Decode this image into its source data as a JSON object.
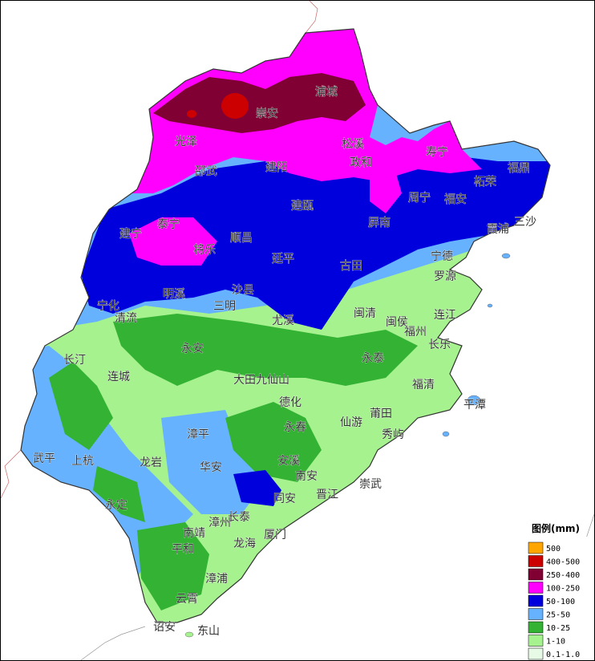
{
  "map": {
    "cities": [
      {
        "name": "浦城",
        "id": "pucheng"
      },
      {
        "name": "崇安",
        "id": "chongan"
      },
      {
        "name": "光泽",
        "id": "guangze"
      },
      {
        "name": "松溪",
        "id": "songxi"
      },
      {
        "name": "寿宁",
        "id": "shouning"
      },
      {
        "name": "福鼎",
        "id": "fuding"
      },
      {
        "name": "邵武",
        "id": "shaowu"
      },
      {
        "name": "建阳",
        "id": "jianyang"
      },
      {
        "name": "政和",
        "id": "zhenghe"
      },
      {
        "name": "柘荣",
        "id": "zherong"
      },
      {
        "name": "周宁",
        "id": "zhouning"
      },
      {
        "name": "福安",
        "id": "fuan"
      },
      {
        "name": "霞浦",
        "id": "xiapu"
      },
      {
        "name": "三沙",
        "id": "sansha"
      },
      {
        "name": "建瓯",
        "id": "jianou"
      },
      {
        "name": "泰宁",
        "id": "taining"
      },
      {
        "name": "屏南",
        "id": "pingnan"
      },
      {
        "name": "建宁",
        "id": "jianning"
      },
      {
        "name": "顺昌",
        "id": "shunchang"
      },
      {
        "name": "将乐",
        "id": "jiangle"
      },
      {
        "name": "延平",
        "id": "yanping"
      },
      {
        "name": "宁德",
        "id": "ningde"
      },
      {
        "name": "古田",
        "id": "gutian"
      },
      {
        "name": "罗源",
        "id": "luoyuan"
      },
      {
        "name": "明溪",
        "id": "mingxi"
      },
      {
        "name": "沙县",
        "id": "shaxian"
      },
      {
        "name": "宁化",
        "id": "ninghua"
      },
      {
        "name": "三明",
        "id": "sanming"
      },
      {
        "name": "清流",
        "id": "qingliu"
      },
      {
        "name": "尤溪",
        "id": "youxi"
      },
      {
        "name": "闽清",
        "id": "minqing"
      },
      {
        "name": "连江",
        "id": "lianjiang"
      },
      {
        "name": "闽侯",
        "id": "minhou"
      },
      {
        "name": "福州",
        "id": "fuzhou"
      },
      {
        "name": "永安",
        "id": "yongan"
      },
      {
        "name": "长乐",
        "id": "changle"
      },
      {
        "name": "长汀",
        "id": "changting"
      },
      {
        "name": "永泰",
        "id": "yongtai"
      },
      {
        "name": "连城",
        "id": "liancheng"
      },
      {
        "name": "大田",
        "id": "datian"
      },
      {
        "name": "九仙山",
        "id": "jiuxianshan"
      },
      {
        "name": "福清",
        "id": "fuqing"
      },
      {
        "name": "德化",
        "id": "dehua"
      },
      {
        "name": "平潭",
        "id": "pingtan"
      },
      {
        "name": "莆田",
        "id": "putian"
      },
      {
        "name": "仙游",
        "id": "xianyou"
      },
      {
        "name": "漳平",
        "id": "zhangping"
      },
      {
        "name": "永春",
        "id": "yongchun"
      },
      {
        "name": "秀屿",
        "id": "xiuyu"
      },
      {
        "name": "武平",
        "id": "wuping"
      },
      {
        "name": "上杭",
        "id": "shanghang"
      },
      {
        "name": "龙岩",
        "id": "longyan"
      },
      {
        "name": "华安",
        "id": "huaan"
      },
      {
        "name": "安溪",
        "id": "anxi"
      },
      {
        "name": "南安",
        "id": "nanan"
      },
      {
        "name": "崇武",
        "id": "chongwu"
      },
      {
        "name": "晋江",
        "id": "jinjiang"
      },
      {
        "name": "永定",
        "id": "yongding"
      },
      {
        "name": "同安",
        "id": "tongan"
      },
      {
        "name": "长泰",
        "id": "changtai"
      },
      {
        "name": "漳州",
        "id": "zhangzhou"
      },
      {
        "name": "南靖",
        "id": "nanjing"
      },
      {
        "name": "厦门",
        "id": "xiamen"
      },
      {
        "name": "龙海",
        "id": "longhai"
      },
      {
        "name": "平和",
        "id": "pinghe"
      },
      {
        "name": "漳浦",
        "id": "zhangpu"
      },
      {
        "name": "云霄",
        "id": "yunxiao"
      },
      {
        "name": "诏安",
        "id": "zhaoan"
      },
      {
        "name": "东山",
        "id": "dongshan"
      }
    ]
  },
  "legend": {
    "title": "图例(mm)",
    "items": [
      {
        "label": "500",
        "color": "#FFA500"
      },
      {
        "label": "400-500",
        "color": "#CC0000"
      },
      {
        "label": "250-400",
        "color": "#800033"
      },
      {
        "label": "100-250",
        "color": "#FF00FF"
      },
      {
        "label": "50-100",
        "color": "#0000DD"
      },
      {
        "label": "25-50",
        "color": "#66B2FF"
      },
      {
        "label": "10-25",
        "color": "#33B233"
      },
      {
        "label": "1-10",
        "color": "#A6F28F"
      },
      {
        "label": "0.1-1.0",
        "color": "#E6FAE6"
      }
    ]
  }
}
